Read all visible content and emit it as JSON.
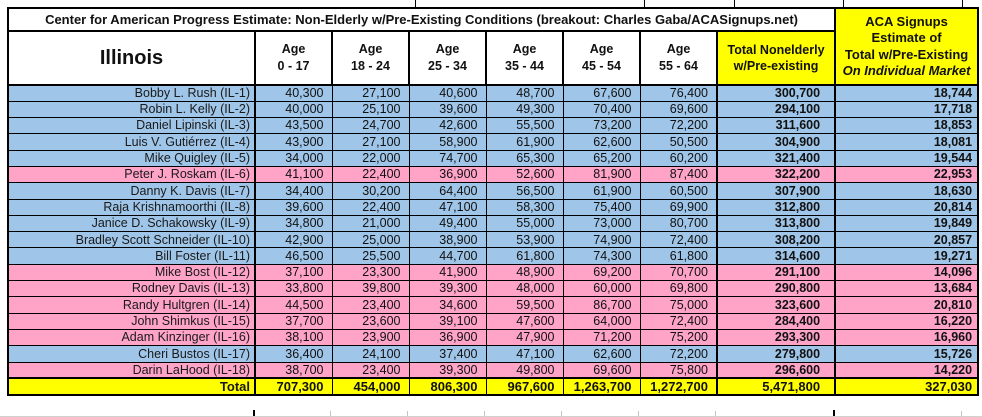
{
  "title": "Center for American Progress Estimate: Non-Elderly w/Pre-Existing Conditions (breakout: Charles Gaba/ACASignups.net)",
  "colors": {
    "blue": "#9FC5E8",
    "pink": "#FFA3C7",
    "yellow": "#FFFF00"
  },
  "table": {
    "state_label": "Illinois",
    "age_columns": [
      {
        "line1": "Age",
        "line2": "0 - 17"
      },
      {
        "line1": "Age",
        "line2": "18 - 24"
      },
      {
        "line1": "Age",
        "line2": "25 - 34"
      },
      {
        "line1": "Age",
        "line2": "35 - 44"
      },
      {
        "line1": "Age",
        "line2": "45 - 54"
      },
      {
        "line1": "Age",
        "line2": "55 - 64"
      }
    ],
    "total_col_header": {
      "line1": "Total Nonelderly",
      "line2": "w/Pre-existing"
    },
    "aca_col_header": {
      "line1": "ACA Signups",
      "line2": "Estimate of",
      "line3": "Total w/Pre-Existing",
      "line4": "On Individual Market"
    },
    "rows": [
      {
        "name": "Bobby L. Rush (IL-1)",
        "color": "blue",
        "values": [
          "40,300",
          "27,100",
          "40,600",
          "48,700",
          "67,600",
          "76,400"
        ],
        "total": "300,700",
        "aca": "18,744"
      },
      {
        "name": "Robin L. Kelly (IL-2)",
        "color": "blue",
        "values": [
          "40,000",
          "25,100",
          "39,600",
          "49,300",
          "70,400",
          "69,600"
        ],
        "total": "294,100",
        "aca": "17,718"
      },
      {
        "name": "Daniel Lipinski (IL-3)",
        "color": "blue",
        "values": [
          "43,500",
          "24,700",
          "42,600",
          "55,500",
          "73,200",
          "72,200"
        ],
        "total": "311,600",
        "aca": "18,853"
      },
      {
        "name": "Luis V. Gutiérrez (IL-4)",
        "color": "blue",
        "values": [
          "43,900",
          "27,100",
          "58,900",
          "61,900",
          "62,600",
          "50,500"
        ],
        "total": "304,900",
        "aca": "18,081"
      },
      {
        "name": "Mike Quigley (IL-5)",
        "color": "blue",
        "values": [
          "34,000",
          "22,000",
          "74,700",
          "65,300",
          "65,200",
          "60,200"
        ],
        "total": "321,400",
        "aca": "19,544"
      },
      {
        "name": "Peter J. Roskam (IL-6)",
        "color": "pink",
        "values": [
          "41,100",
          "22,400",
          "36,900",
          "52,600",
          "81,900",
          "87,400"
        ],
        "total": "322,200",
        "aca": "22,953"
      },
      {
        "name": "Danny K. Davis (IL-7)",
        "color": "blue",
        "values": [
          "34,400",
          "30,200",
          "64,400",
          "56,500",
          "61,900",
          "60,500"
        ],
        "total": "307,900",
        "aca": "18,630"
      },
      {
        "name": "Raja Krishnamoorthi (IL-8)",
        "color": "blue",
        "values": [
          "39,600",
          "22,400",
          "47,100",
          "58,300",
          "75,400",
          "69,900"
        ],
        "total": "312,800",
        "aca": "20,814"
      },
      {
        "name": "Janice D. Schakowsky (IL-9)",
        "color": "blue",
        "values": [
          "34,800",
          "21,000",
          "49,400",
          "55,000",
          "73,000",
          "80,700"
        ],
        "total": "313,800",
        "aca": "19,849"
      },
      {
        "name": "Bradley Scott Schneider (IL-10)",
        "color": "blue",
        "values": [
          "42,900",
          "25,000",
          "38,900",
          "53,900",
          "74,900",
          "72,400"
        ],
        "total": "308,200",
        "aca": "20,857"
      },
      {
        "name": "Bill Foster (IL-11)",
        "color": "blue",
        "values": [
          "46,500",
          "25,500",
          "44,700",
          "61,800",
          "74,300",
          "61,800"
        ],
        "total": "314,600",
        "aca": "19,271"
      },
      {
        "name": "Mike Bost (IL-12)",
        "color": "pink",
        "values": [
          "37,100",
          "23,300",
          "41,900",
          "48,900",
          "69,200",
          "70,700"
        ],
        "total": "291,100",
        "aca": "14,096"
      },
      {
        "name": "Rodney Davis (IL-13)",
        "color": "pink",
        "values": [
          "33,800",
          "39,800",
          "39,300",
          "48,000",
          "60,000",
          "69,800"
        ],
        "total": "290,800",
        "aca": "13,684"
      },
      {
        "name": "Randy Hultgren (IL-14)",
        "color": "pink",
        "values": [
          "44,500",
          "23,400",
          "34,600",
          "59,500",
          "86,700",
          "75,000"
        ],
        "total": "323,600",
        "aca": "20,810"
      },
      {
        "name": "John Shimkus (IL-15)",
        "color": "pink",
        "values": [
          "37,700",
          "23,600",
          "39,100",
          "47,600",
          "64,000",
          "72,400"
        ],
        "total": "284,400",
        "aca": "16,220"
      },
      {
        "name": "Adam Kinzinger (IL-16)",
        "color": "pink",
        "values": [
          "38,100",
          "23,900",
          "36,900",
          "47,900",
          "71,200",
          "75,200"
        ],
        "total": "293,300",
        "aca": "16,960"
      },
      {
        "name": "Cheri Bustos (IL-17)",
        "color": "blue",
        "values": [
          "36,400",
          "24,100",
          "37,400",
          "47,100",
          "62,600",
          "72,200"
        ],
        "total": "279,800",
        "aca": "15,726"
      },
      {
        "name": "Darin LaHood (IL-18)",
        "color": "pink",
        "values": [
          "38,700",
          "23,400",
          "39,300",
          "49,800",
          "69,600",
          "75,800"
        ],
        "total": "296,600",
        "aca": "14,220"
      }
    ],
    "total_row": {
      "label": "Total",
      "values": [
        "707,300",
        "454,000",
        "806,300",
        "967,600",
        "1,263,700",
        "1,272,700"
      ],
      "total": "5,471,800",
      "aca": "327,030"
    }
  }
}
